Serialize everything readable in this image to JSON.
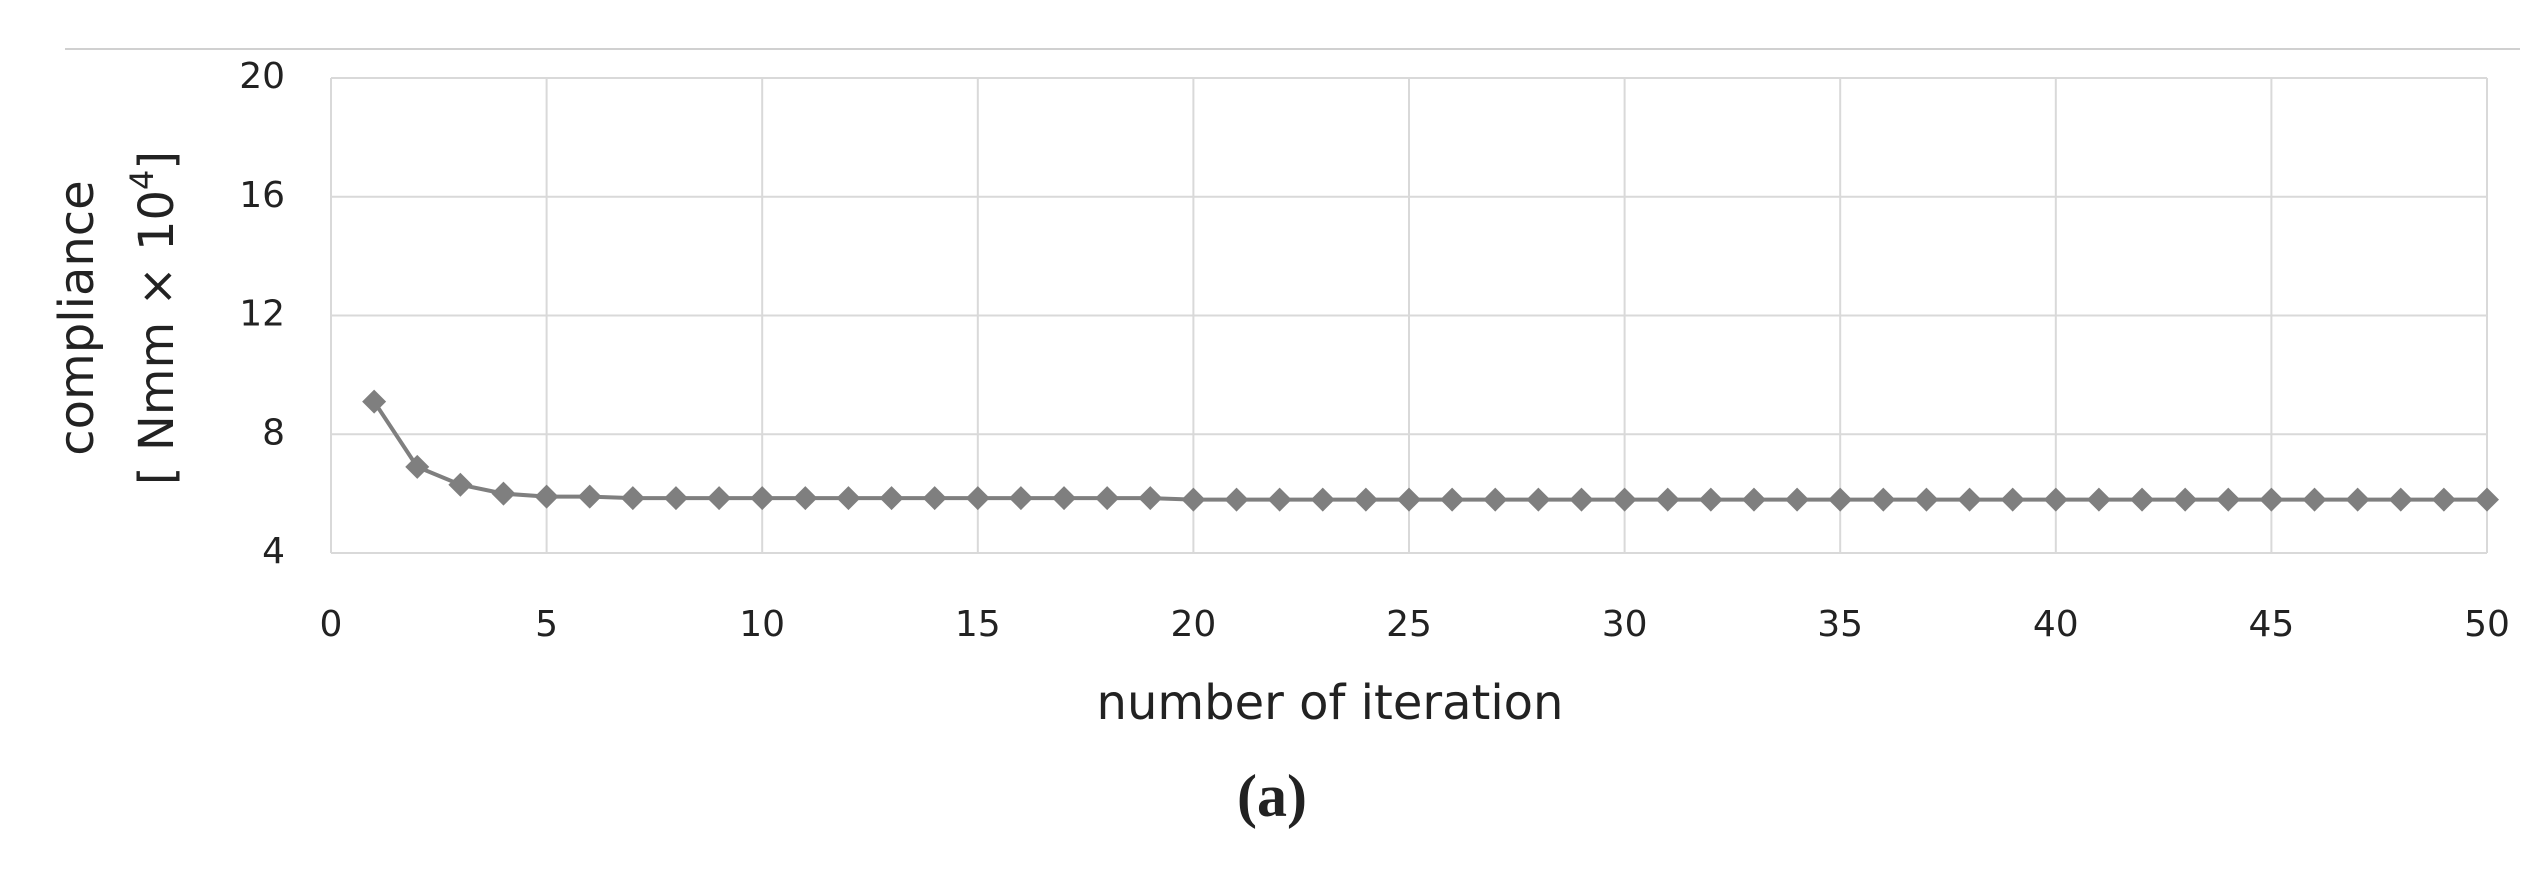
{
  "chart_data": {
    "type": "line",
    "ylabel": {
      "text": "compliance",
      "unit": "[ Nmm × 10",
      "exponent": "4",
      "close": "]"
    },
    "xlabel": "number of iteration",
    "caption": "(a)",
    "series": [
      {
        "color": "#7f7f7f",
        "x": [
          1,
          2,
          3,
          4,
          5,
          6,
          7,
          8,
          9,
          10,
          11,
          12,
          13,
          14,
          15,
          16,
          17,
          18,
          19,
          20,
          21,
          22,
          23,
          24,
          25,
          26,
          27,
          28,
          29,
          30,
          31,
          32,
          33,
          34,
          35,
          36,
          37,
          38,
          39,
          40,
          41,
          42,
          43,
          44,
          45,
          46,
          47,
          48,
          49,
          50
        ],
        "values": [
          9.1,
          6.9,
          6.3,
          6.0,
          5.9,
          5.9,
          5.85,
          5.85,
          5.85,
          5.85,
          5.85,
          5.85,
          5.85,
          5.85,
          5.85,
          5.85,
          5.85,
          5.85,
          5.85,
          5.8,
          5.8,
          5.8,
          5.8,
          5.8,
          5.8,
          5.8,
          5.8,
          5.8,
          5.8,
          5.8,
          5.8,
          5.8,
          5.8,
          5.8,
          5.8,
          5.8,
          5.8,
          5.8,
          5.8,
          5.8,
          5.8,
          5.8,
          5.8,
          5.8,
          5.8,
          5.8,
          5.8,
          5.8,
          5.8,
          5.8
        ]
      }
    ],
    "xlim": [
      0,
      50
    ],
    "xticks": [
      0,
      5,
      10,
      15,
      20,
      25,
      30,
      35,
      40,
      45,
      50
    ],
    "ylim": [
      4,
      20
    ],
    "yticks": [
      4,
      8,
      12,
      16,
      20
    ],
    "grid": true
  }
}
